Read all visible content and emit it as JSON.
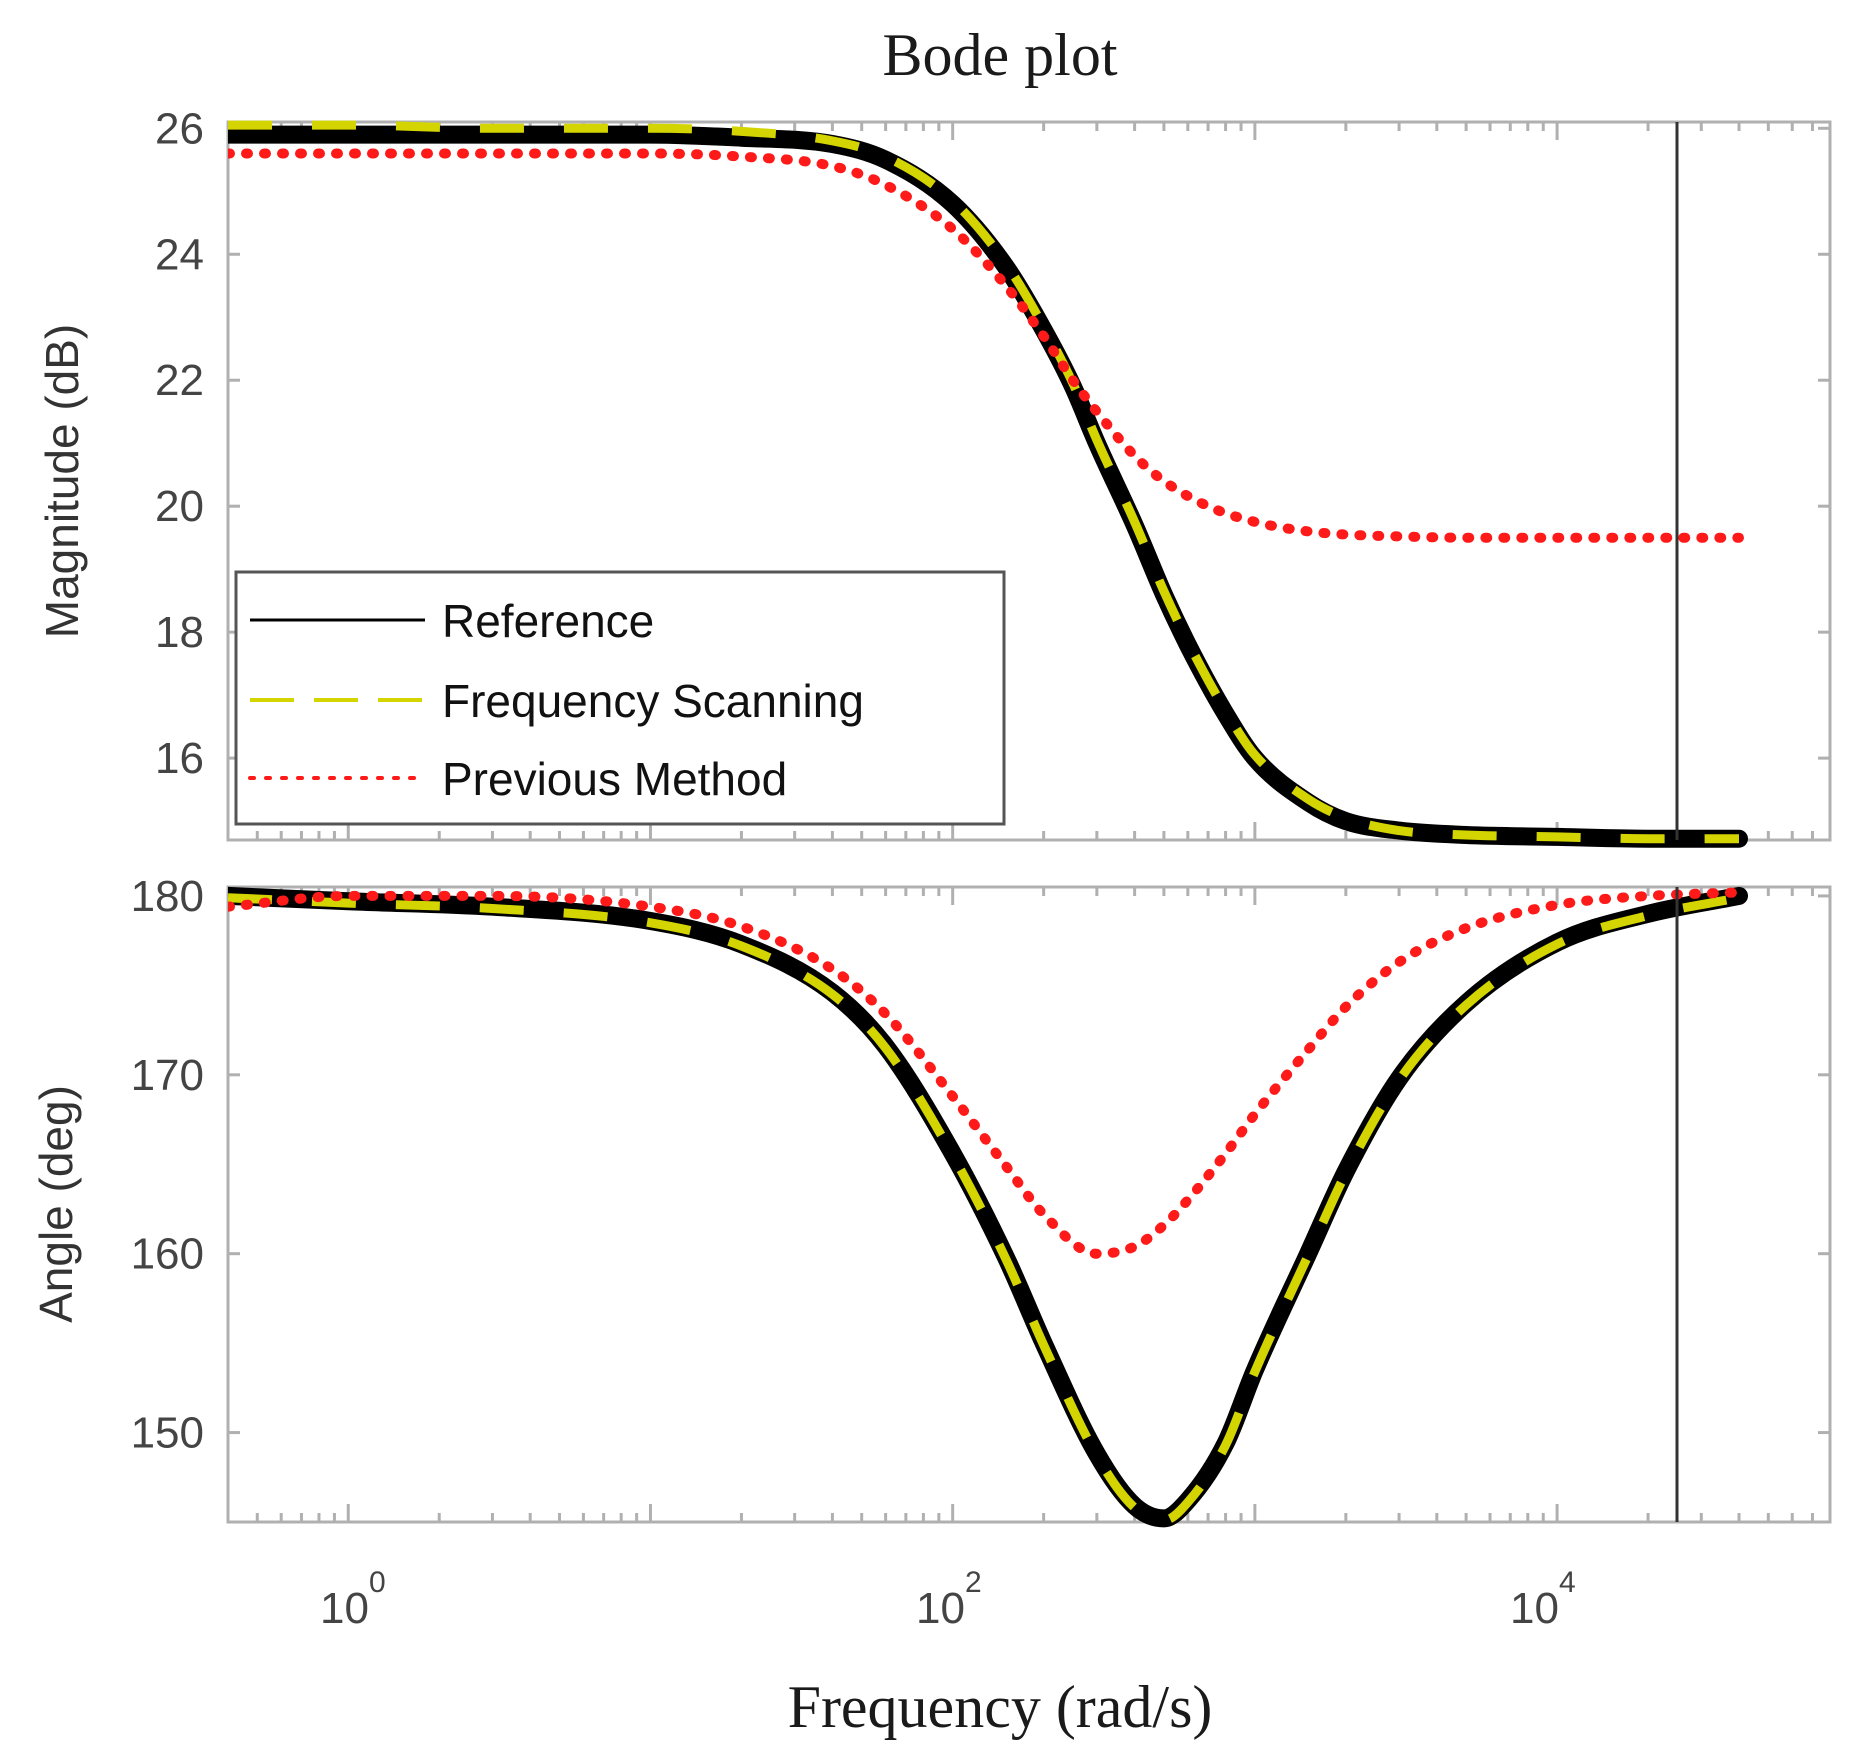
{
  "chart_data": {
    "type": "line",
    "title": "Bode plot",
    "xlabel": "Frequency (rad/s)",
    "x_scale": "log",
    "xlim": [
      0.4,
      80000
    ],
    "x_ticks": [
      {
        "base": "10",
        "exp": "0",
        "value": 1
      },
      {
        "base": "10",
        "exp": "2",
        "value": 100
      },
      {
        "base": "10",
        "exp": "4",
        "value": 10000
      }
    ],
    "legend": {
      "position": "lower-left of magnitude panel",
      "entries": [
        {
          "label": "Reference",
          "color": "#000000",
          "style": "solid"
        },
        {
          "label": "Frequency Scanning",
          "color": "#d4d400",
          "style": "dashed"
        },
        {
          "label": "Previous Method",
          "color": "#ff1a1a",
          "style": "dotted"
        }
      ]
    },
    "panels": [
      {
        "id": "magnitude",
        "ylabel": "Magnitude (dB)",
        "ylim": [
          14.7,
          26.1
        ],
        "y_ticks": [
          16,
          18,
          20,
          22,
          24,
          26
        ],
        "series": [
          {
            "name": "Reference",
            "color": "#000000",
            "x": [
              0.4,
              1,
              3,
              10,
              20,
              40,
              60,
              100,
              150,
              200,
              250,
              300,
              400,
              500,
              600,
              800,
              1000,
              1500,
              2000,
              3000,
              5000,
              10000,
              20000,
              40000
            ],
            "y": [
              25.9,
              25.9,
              25.9,
              25.9,
              25.85,
              25.75,
              25.5,
              24.8,
              23.8,
              22.8,
              21.9,
              21.0,
              19.7,
              18.6,
              17.8,
              16.7,
              16.0,
              15.3,
              15.0,
              14.85,
              14.78,
              14.75,
              14.72,
              14.72
            ]
          },
          {
            "name": "Frequency Scanning",
            "color": "#d4d400",
            "x": [
              0.4,
              1,
              3,
              10,
              20,
              40,
              60,
              100,
              150,
              200,
              250,
              300,
              400,
              500,
              600,
              800,
              1000,
              1500,
              2000,
              3000,
              5000,
              10000,
              20000,
              40000
            ],
            "y": [
              26.05,
              26.05,
              26.0,
              26.0,
              25.95,
              25.8,
              25.55,
              24.85,
              23.85,
              22.85,
              21.95,
              21.05,
              19.75,
              18.65,
              17.85,
              16.75,
              16.05,
              15.35,
              15.05,
              14.85,
              14.78,
              14.75,
              14.72,
              14.72
            ]
          },
          {
            "name": "Previous Method",
            "color": "#ff1a1a",
            "x": [
              0.4,
              1,
              3,
              10,
              20,
              40,
              60,
              100,
              150,
              200,
              250,
              300,
              400,
              500,
              700,
              1000,
              1500,
              2000,
              3000,
              5000,
              10000,
              20000,
              40000
            ],
            "y": [
              25.6,
              25.6,
              25.6,
              25.6,
              25.55,
              25.4,
              25.1,
              24.4,
              23.5,
              22.7,
              22.0,
              21.5,
              20.8,
              20.4,
              20.0,
              19.75,
              19.6,
              19.55,
              19.52,
              19.5,
              19.5,
              19.5,
              19.5
            ]
          }
        ]
      },
      {
        "id": "phase",
        "ylabel": "Angle (deg)",
        "ylim": [
          145,
          180.5
        ],
        "y_ticks": [
          150,
          160,
          170,
          180
        ],
        "series": [
          {
            "name": "Reference",
            "color": "#000000",
            "x": [
              0.4,
              1,
              3,
              10,
              20,
              40,
              60,
              100,
              150,
              200,
              300,
              400,
              500,
              600,
              800,
              1000,
              1500,
              2000,
              3000,
              5000,
              10000,
              20000,
              40000
            ],
            "y": [
              180,
              179.7,
              179.4,
              178.6,
              177.3,
              174.6,
              171.6,
              165.6,
              159.8,
              155.0,
              148.8,
              145.9,
              145.2,
              146.2,
              149.4,
              153.5,
              160.0,
              164.6,
              169.8,
              174.0,
              177.4,
              179.0,
              180
            ]
          },
          {
            "name": "Frequency Scanning",
            "color": "#d4d400",
            "x": [
              0.4,
              1,
              3,
              10,
              20,
              40,
              60,
              100,
              150,
              200,
              300,
              400,
              500,
              600,
              800,
              1000,
              1500,
              2000,
              3000,
              5000,
              10000,
              20000,
              40000
            ],
            "y": [
              179.9,
              179.6,
              179.3,
              178.5,
              177.2,
              174.5,
              171.5,
              165.5,
              159.7,
              154.9,
              148.7,
              145.8,
              145.1,
              146.1,
              149.3,
              153.4,
              159.9,
              164.5,
              169.7,
              173.9,
              177.3,
              178.9,
              179.9
            ]
          },
          {
            "name": "Previous Method",
            "color": "#ff1a1a",
            "x": [
              0.4,
              1,
              3,
              10,
              20,
              40,
              60,
              100,
              150,
              200,
              300,
              400,
              500,
              600,
              800,
              1000,
              1500,
              2000,
              3000,
              5000,
              10000,
              20000,
              40000
            ],
            "y": [
              179.4,
              180.0,
              180.0,
              179.4,
              178.3,
              175.9,
              173.4,
              168.8,
              164.9,
              162.2,
              160.0,
              160.4,
              161.6,
              163.0,
              165.6,
              167.8,
              171.4,
              173.8,
              176.3,
              178.2,
              179.5,
              180.0,
              180.2
            ]
          }
        ]
      }
    ]
  }
}
